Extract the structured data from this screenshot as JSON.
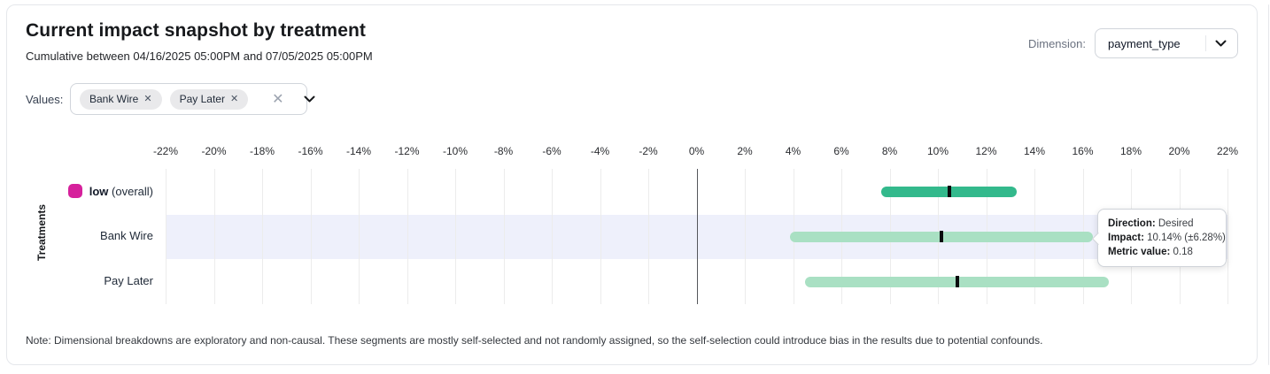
{
  "header": {
    "title": "Current impact snapshot by treatment",
    "subtitle": "Cumulative between 04/16/2025 05:00PM and 07/05/2025 05:00PM",
    "dimension_label": "Dimension:",
    "dimension_value": "payment_type"
  },
  "filters": {
    "values_label": "Values:",
    "chips": [
      {
        "label": "Bank Wire"
      },
      {
        "label": "Pay Later"
      }
    ]
  },
  "chart_data": {
    "type": "bar",
    "subtype": "horizontal-range-bars-with-center-tick",
    "title": "Current impact snapshot by treatment",
    "ylabel": "Treatments",
    "x_axis": {
      "unit": "%",
      "min": -22,
      "max": 22,
      "step": 2,
      "tick_labels": [
        "-22%",
        "-20%",
        "-18%",
        "-16%",
        "-14%",
        "-12%",
        "-10%",
        "-8%",
        "-6%",
        "-4%",
        "-2%",
        "0%",
        "2%",
        "4%",
        "6%",
        "8%",
        "10%",
        "12%",
        "14%",
        "16%",
        "18%",
        "20%",
        "22%"
      ]
    },
    "grid": true,
    "zero_line": 0,
    "rows": [
      {
        "label": "low",
        "suffix": "(overall)",
        "legend_color": "#d6219c",
        "bar_color": "#33b98c",
        "impact_pct": 10.46,
        "margin_pct": 2.8,
        "range": [
          7.66,
          13.26
        ],
        "highlighted": false
      },
      {
        "label": "Bank Wire",
        "legend_color": null,
        "bar_color": "#a9e0c3",
        "impact_pct": 10.14,
        "margin_pct": 6.28,
        "range": [
          3.86,
          16.42
        ],
        "highlighted": true
      },
      {
        "label": "Pay Later",
        "legend_color": null,
        "bar_color": "#a9e0c3",
        "impact_pct": 10.8,
        "margin_pct": 6.3,
        "range": [
          4.5,
          17.1
        ],
        "highlighted": false
      }
    ]
  },
  "tooltip": {
    "direction_label": "Direction:",
    "direction_value": "Desired",
    "impact_label": "Impact:",
    "impact_value": "10.14% (±6.28%)",
    "metric_label": "Metric value:",
    "metric_value": "0.18"
  },
  "note": "Note: Dimensional breakdowns are exploratory and non-causal. These segments are mostly self-selected and not randomly assigned, so the self-selection could introduce bias in the results due to potential confounds.",
  "colors": {
    "accent_green_dark": "#33b98c",
    "accent_green_light": "#a9e0c3",
    "legend_magenta": "#d6219c",
    "row_highlight": "#eef0fb",
    "gridline": "#ececec",
    "zero_line": "#55575c"
  }
}
